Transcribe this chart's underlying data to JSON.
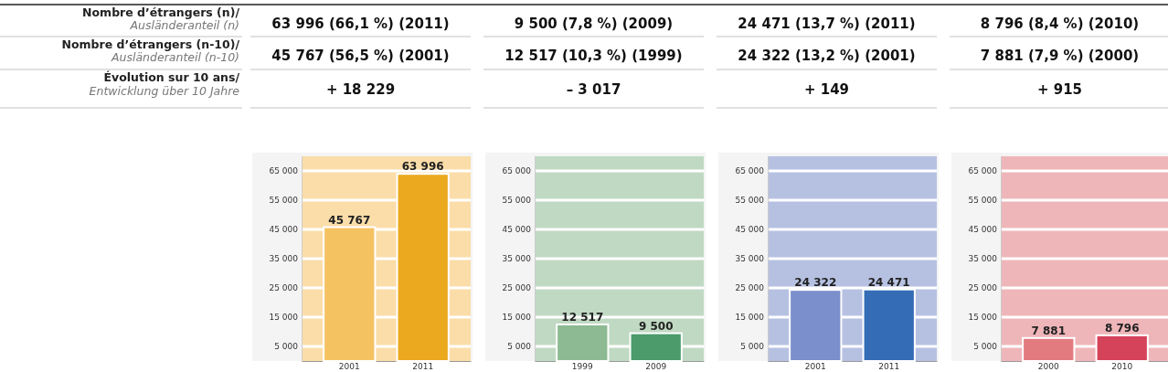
{
  "chart_data": [
    {
      "type": "other",
      "annotations": [
        "Nombre d’étrangers (n)/",
        "Ausländeranteil (n)",
        "Nombre d’étrangers (n-10)/",
        "Ausländeranteil (n-10)",
        "Évolution sur 10 ans/",
        "Entwicklung über 10 Jahre"
      ]
    },
    {
      "type": "bar",
      "annotations": [
        "63 996 (66,1 %) (2011)",
        "45 767 (56,5 %) (2001)",
        "+ 18 229"
      ],
      "categories": [
        "2001",
        "2011"
      ],
      "values": [
        45767,
        63996
      ],
      "colors": [
        "#f5c262",
        "#eba91f"
      ],
      "value_labels": [
        "45 767",
        "63 996"
      ],
      "ylim": [
        0,
        70000
      ],
      "yticks": [
        {
          "value": 5000,
          "label": "5 000"
        },
        {
          "value": 15000,
          "label": "15 000"
        },
        {
          "value": 25000,
          "label": "25 000"
        },
        {
          "value": 35000,
          "label": "35 000"
        },
        {
          "value": 45000,
          "label": "45 000"
        },
        {
          "value": 55000,
          "label": "55 000"
        },
        {
          "value": 65000,
          "label": "65 000"
        }
      ],
      "grid": true
    },
    {
      "type": "bar",
      "annotations": [
        "9 500 (7,8 %) (2009)",
        "12 517 (10,3 %) (1999)",
        "– 3 017"
      ],
      "categories": [
        "1999",
        "2009"
      ],
      "values": [
        12517,
        9500
      ],
      "colors": [
        "#8dba92",
        "#4b9b6b"
      ],
      "value_labels": [
        "12 517",
        "9 500"
      ],
      "ylim": [
        0,
        70000
      ],
      "yticks": [
        {
          "value": 5000,
          "label": "5 000"
        },
        {
          "value": 15000,
          "label": "15 000"
        },
        {
          "value": 25000,
          "label": "25 000"
        },
        {
          "value": 35000,
          "label": "35 000"
        },
        {
          "value": 45000,
          "label": "45 000"
        },
        {
          "value": 55000,
          "label": "55 000"
        },
        {
          "value": 65000,
          "label": "65 000"
        }
      ],
      "grid": true
    },
    {
      "type": "bar",
      "annotations": [
        "24 471 (13,7 %) (2011)",
        "24 322 (13,2 %) (2001)",
        "+ 149"
      ],
      "categories": [
        "2001",
        "2011"
      ],
      "values": [
        24322,
        24471
      ],
      "colors": [
        "#7a8fcb",
        "#346db5"
      ],
      "value_labels": [
        "24 322",
        "24 471"
      ],
      "ylim": [
        0,
        70000
      ],
      "yticks": [
        {
          "value": 5000,
          "label": "5 000"
        },
        {
          "value": 15000,
          "label": "15 000"
        },
        {
          "value": 25000,
          "label": "25 000"
        },
        {
          "value": 35000,
          "label": "35 000"
        },
        {
          "value": 45000,
          "label": "45 000"
        },
        {
          "value": 55000,
          "label": "55 000"
        },
        {
          "value": 65000,
          "label": "65 000"
        }
      ],
      "grid": true
    },
    {
      "type": "bar",
      "annotations": [
        "8 796 (8,4 %) (2010)",
        "7 881 (7,9 %) (2000)",
        "+ 915"
      ],
      "categories": [
        "2000",
        "2010"
      ],
      "values": [
        7881,
        8796
      ],
      "colors": [
        "#e27b7f",
        "#d5435a"
      ],
      "value_labels": [
        "7 881",
        "8 796"
      ],
      "ylim": [
        0,
        70000
      ],
      "yticks": [
        {
          "value": 5000,
          "label": "5 000"
        },
        {
          "value": 15000,
          "label": "15 000"
        },
        {
          "value": 25000,
          "label": "25 000"
        },
        {
          "value": 35000,
          "label": "35 000"
        },
        {
          "value": 45000,
          "label": "45 000"
        },
        {
          "value": 55000,
          "label": "55 000"
        },
        {
          "value": 65000,
          "label": "65 000"
        }
      ],
      "grid": true
    }
  ]
}
